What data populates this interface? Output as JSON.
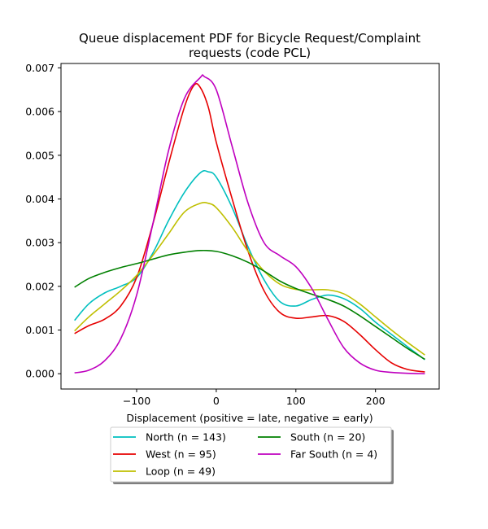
{
  "chart_data": {
    "type": "line",
    "title": [
      "Queue displacement PDF for Bicycle Request/Complaint",
      "requests (code PCL)"
    ],
    "xlabel": "Displacement (positive = late, negative = early)",
    "ylabel": "",
    "xlim": [
      -195,
      280
    ],
    "ylim": [
      -0.00035,
      0.0071
    ],
    "xticks": [
      -100,
      0,
      100,
      200
    ],
    "xtick_labels": [
      "−100",
      "0",
      "100",
      "200"
    ],
    "yticks": [
      0.0,
      0.001,
      0.002,
      0.003,
      0.004,
      0.005,
      0.006,
      0.007
    ],
    "ytick_labels": [
      "0.000",
      "0.001",
      "0.002",
      "0.003",
      "0.004",
      "0.005",
      "0.006",
      "0.007"
    ],
    "grid": false,
    "legend_placement": "below-center",
    "series": [
      {
        "name": "North (n = 143)",
        "color": "#00bfbf",
        "x": [
          -178,
          -160,
          -140,
          -120,
          -100,
          -80,
          -60,
          -40,
          -20,
          -10,
          0,
          20,
          40,
          60,
          80,
          100,
          120,
          140,
          160,
          180,
          200,
          220,
          240,
          262
        ],
        "y": [
          0.00122,
          0.0016,
          0.00185,
          0.002,
          0.0022,
          0.00275,
          0.0035,
          0.00415,
          0.0046,
          0.00462,
          0.0045,
          0.0038,
          0.0029,
          0.00215,
          0.00165,
          0.00155,
          0.0017,
          0.0018,
          0.00172,
          0.0015,
          0.00118,
          0.0009,
          0.00062,
          0.00032
        ]
      },
      {
        "name": "West (n = 95)",
        "color": "#e60000",
        "x": [
          -178,
          -160,
          -140,
          -120,
          -100,
          -80,
          -60,
          -40,
          -28,
          -20,
          -10,
          0,
          20,
          40,
          60,
          80,
          100,
          120,
          140,
          160,
          180,
          200,
          220,
          240,
          262
        ],
        "y": [
          0.00092,
          0.0011,
          0.00125,
          0.00155,
          0.0022,
          0.0034,
          0.0048,
          0.0061,
          0.0066,
          0.00655,
          0.0061,
          0.0053,
          0.004,
          0.0028,
          0.0019,
          0.0014,
          0.00127,
          0.0013,
          0.00133,
          0.0012,
          0.0009,
          0.00055,
          0.00025,
          0.0001,
          4e-05
        ]
      },
      {
        "name": "Loop (n = 49)",
        "color": "#bfbf00",
        "x": [
          -178,
          -160,
          -140,
          -120,
          -100,
          -80,
          -60,
          -40,
          -20,
          -10,
          0,
          20,
          40,
          60,
          80,
          100,
          120,
          140,
          160,
          180,
          200,
          220,
          240,
          262
        ],
        "y": [
          0.00098,
          0.0013,
          0.0016,
          0.0019,
          0.00225,
          0.0027,
          0.0032,
          0.0037,
          0.0039,
          0.0039,
          0.0038,
          0.00335,
          0.0028,
          0.00235,
          0.00205,
          0.00193,
          0.00192,
          0.00192,
          0.00183,
          0.0016,
          0.0013,
          0.001,
          0.00072,
          0.00043
        ]
      },
      {
        "name": "South (n = 20)",
        "color": "#008000",
        "x": [
          -178,
          -160,
          -140,
          -120,
          -100,
          -80,
          -60,
          -40,
          -20,
          0,
          20,
          40,
          60,
          80,
          100,
          120,
          140,
          160,
          180,
          200,
          220,
          240,
          262
        ],
        "y": [
          0.00198,
          0.00218,
          0.00232,
          0.00243,
          0.00252,
          0.00262,
          0.00272,
          0.00278,
          0.00282,
          0.0028,
          0.0027,
          0.00255,
          0.00235,
          0.00212,
          0.00195,
          0.00182,
          0.0017,
          0.00155,
          0.00133,
          0.00108,
          0.00083,
          0.00058,
          0.00033
        ]
      },
      {
        "name": "Far South (n = 4)",
        "color": "#bf00bf",
        "x": [
          -178,
          -160,
          -140,
          -120,
          -100,
          -80,
          -60,
          -40,
          -20,
          -15,
          0,
          20,
          40,
          60,
          80,
          100,
          120,
          140,
          160,
          180,
          200,
          220,
          240,
          262
        ],
        "y": [
          2e-05,
          8e-05,
          0.0003,
          0.0008,
          0.0018,
          0.0034,
          0.0051,
          0.0063,
          0.00678,
          0.0068,
          0.0065,
          0.0052,
          0.0039,
          0.003,
          0.0027,
          0.00245,
          0.00195,
          0.00125,
          0.0006,
          0.00025,
          8e-05,
          3e-05,
          1e-05,
          0.0
        ]
      }
    ]
  }
}
